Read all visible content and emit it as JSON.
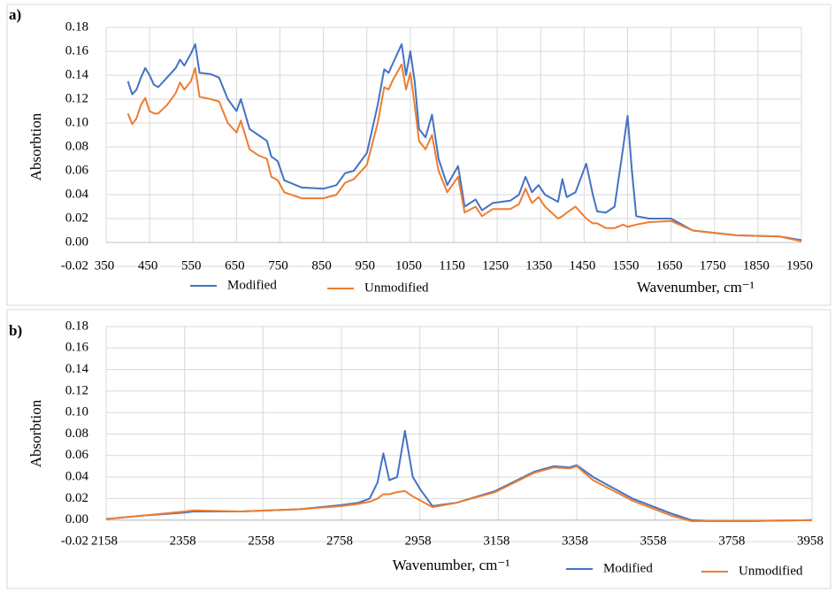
{
  "chart_data": [
    {
      "type": "line",
      "label": "a)",
      "ylabel": "Absorbtion",
      "xlabel": "Wavenumber, cm⁻¹",
      "grid": true,
      "x": [
        400,
        410,
        420,
        430,
        440,
        450,
        460,
        470,
        490,
        510,
        520,
        530,
        545,
        555,
        565,
        590,
        610,
        630,
        650,
        660,
        680,
        700,
        720,
        730,
        745,
        760,
        800,
        850,
        880,
        900,
        920,
        950,
        975,
        990,
        1000,
        1010,
        1030,
        1040,
        1050,
        1060,
        1070,
        1085,
        1100,
        1115,
        1135,
        1160,
        1175,
        1200,
        1215,
        1240,
        1280,
        1300,
        1315,
        1330,
        1345,
        1360,
        1390,
        1400,
        1410,
        1430,
        1455,
        1470,
        1480,
        1500,
        1520,
        1540,
        1550,
        1560,
        1570,
        1600,
        1650,
        1700,
        1800,
        1900,
        1950
      ],
      "series": [
        {
          "name": "Modified",
          "color": "#4472c4",
          "values": [
            0.135,
            0.124,
            0.128,
            0.138,
            0.146,
            0.14,
            0.132,
            0.13,
            0.138,
            0.146,
            0.153,
            0.148,
            0.158,
            0.166,
            0.142,
            0.141,
            0.138,
            0.12,
            0.11,
            0.12,
            0.095,
            0.09,
            0.085,
            0.072,
            0.068,
            0.052,
            0.046,
            0.045,
            0.048,
            0.058,
            0.06,
            0.075,
            0.115,
            0.145,
            0.142,
            0.15,
            0.166,
            0.14,
            0.16,
            0.135,
            0.095,
            0.088,
            0.107,
            0.07,
            0.048,
            0.064,
            0.03,
            0.036,
            0.027,
            0.033,
            0.035,
            0.04,
            0.055,
            0.042,
            0.048,
            0.04,
            0.034,
            0.053,
            0.038,
            0.042,
            0.066,
            0.04,
            0.026,
            0.025,
            0.03,
            0.08,
            0.106,
            0.06,
            0.022,
            0.02,
            0.02,
            0.01,
            0.006,
            0.005,
            0.002
          ]
        },
        {
          "name": "Unmodified",
          "color": "#ed7d31",
          "values": [
            0.108,
            0.099,
            0.104,
            0.115,
            0.121,
            0.11,
            0.108,
            0.108,
            0.115,
            0.125,
            0.134,
            0.128,
            0.135,
            0.146,
            0.122,
            0.12,
            0.118,
            0.1,
            0.092,
            0.102,
            0.078,
            0.073,
            0.07,
            0.055,
            0.052,
            0.042,
            0.037,
            0.037,
            0.04,
            0.05,
            0.053,
            0.065,
            0.1,
            0.13,
            0.128,
            0.136,
            0.149,
            0.128,
            0.142,
            0.115,
            0.085,
            0.078,
            0.09,
            0.06,
            0.042,
            0.055,
            0.025,
            0.03,
            0.022,
            0.028,
            0.028,
            0.032,
            0.045,
            0.033,
            0.038,
            0.03,
            0.02,
            0.022,
            0.025,
            0.03,
            0.02,
            0.016,
            0.016,
            0.012,
            0.012,
            0.015,
            0.013,
            0.014,
            0.015,
            0.017,
            0.018,
            0.01,
            0.006,
            0.005,
            0.001
          ]
        }
      ],
      "xlim": [
        350,
        1950
      ],
      "xticks": [
        350,
        450,
        550,
        650,
        750,
        850,
        950,
        1050,
        1150,
        1250,
        1350,
        1450,
        1550,
        1650,
        1750,
        1850,
        1950
      ],
      "ylim": [
        -0.02,
        0.18
      ],
      "yticks": [
        {
          "value": -0.02,
          "label": "-0.02"
        },
        {
          "value": 0,
          "label": "0.00"
        },
        {
          "value": 0.02,
          "label": "0.02"
        },
        {
          "value": 0.04,
          "label": "0.04"
        },
        {
          "value": 0.06,
          "label": "0.06"
        },
        {
          "value": 0.08,
          "label": "0.08"
        },
        {
          "value": 0.1,
          "label": "0.10"
        },
        {
          "value": 0.12,
          "label": "0.12"
        },
        {
          "value": 0.14,
          "label": "0.14"
        },
        {
          "value": 0.16,
          "label": "0.16"
        },
        {
          "value": 0.18,
          "label": "0.18"
        }
      ]
    },
    {
      "type": "line",
      "label": "b)",
      "ylabel": "Absorbtion",
      "xlabel": "Wavenumber, cm⁻¹",
      "grid": true,
      "x": [
        2158,
        2250,
        2358,
        2380,
        2500,
        2650,
        2758,
        2800,
        2830,
        2850,
        2865,
        2880,
        2900,
        2920,
        2940,
        2960,
        2990,
        3050,
        3150,
        3250,
        3300,
        3340,
        3358,
        3400,
        3500,
        3600,
        3650,
        3700,
        3800,
        3958
      ],
      "series": [
        {
          "name": "Modified",
          "color": "#4472c4",
          "values": [
            0.001,
            0.004,
            0.007,
            0.008,
            0.008,
            0.01,
            0.014,
            0.016,
            0.02,
            0.035,
            0.062,
            0.037,
            0.04,
            0.083,
            0.04,
            0.028,
            0.013,
            0.016,
            0.027,
            0.045,
            0.05,
            0.049,
            0.051,
            0.04,
            0.02,
            0.006,
            0.0,
            -0.001,
            -0.001,
            0.0
          ]
        },
        {
          "name": "Unmodified",
          "color": "#ed7d31",
          "values": [
            0.001,
            0.004,
            0.008,
            0.009,
            0.008,
            0.01,
            0.013,
            0.015,
            0.017,
            0.02,
            0.024,
            0.024,
            0.026,
            0.027,
            0.022,
            0.018,
            0.012,
            0.016,
            0.026,
            0.044,
            0.049,
            0.048,
            0.05,
            0.037,
            0.018,
            0.004,
            -0.001,
            -0.001,
            -0.001,
            0.0
          ]
        }
      ],
      "xlim": [
        2158,
        3958
      ],
      "xticks": [
        2158,
        2358,
        2558,
        2758,
        2958,
        3158,
        3358,
        3558,
        3758,
        3958
      ],
      "ylim": [
        -0.02,
        0.18
      ],
      "yticks": [
        {
          "value": -0.02,
          "label": "-0.02"
        },
        {
          "value": 0,
          "label": "0.00"
        },
        {
          "value": 0.02,
          "label": "0.02"
        },
        {
          "value": 0.04,
          "label": "0.04"
        },
        {
          "value": 0.06,
          "label": "0.06"
        },
        {
          "value": 0.08,
          "label": "0.08"
        },
        {
          "value": 0.1,
          "label": "0.10"
        },
        {
          "value": 0.12,
          "label": "0.12"
        },
        {
          "value": 0.14,
          "label": "0.14"
        },
        {
          "value": 0.16,
          "label": "0.16"
        },
        {
          "value": 0.18,
          "label": "0.18"
        }
      ]
    }
  ]
}
